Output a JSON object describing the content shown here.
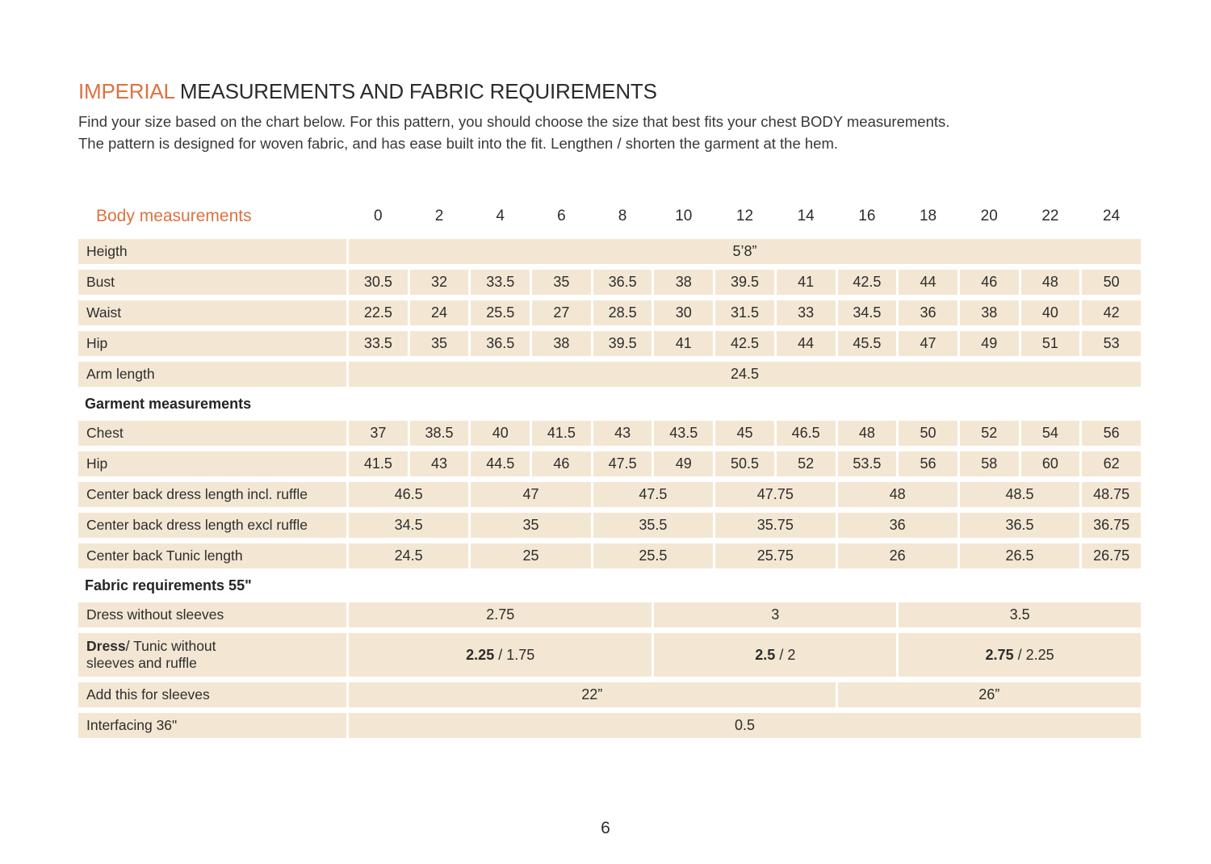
{
  "page": {
    "title_accent": "IMPERIAL",
    "title_rest": "MEASUREMENTS AND FABRIC REQUIREMENTS",
    "intro_line1": "Find your size based on the chart below. For this pattern, you should choose the size that best fits your chest BODY measurements.",
    "intro_line2": "The pattern is designed for woven fabric, and has ease built into the fit. Lengthen / shorten the garment at the hem.",
    "page_number": "6"
  },
  "colors": {
    "accent_orange": "#dd7240",
    "cell_beige": "#f3e7d3",
    "text_dark": "#2d2d2d"
  },
  "table": {
    "header_label": "Body measurements",
    "sizes": [
      "0",
      "2",
      "4",
      "6",
      "8",
      "10",
      "12",
      "14",
      "16",
      "18",
      "20",
      "22",
      "24"
    ],
    "rows": [
      {
        "type": "data",
        "label": "Heigth",
        "cells": [
          {
            "text": "5’8”",
            "span": 13
          }
        ]
      },
      {
        "type": "data",
        "label": "Bust",
        "cells": [
          {
            "text": "30.5"
          },
          {
            "text": "32"
          },
          {
            "text": "33.5"
          },
          {
            "text": "35"
          },
          {
            "text": "36.5"
          },
          {
            "text": "38"
          },
          {
            "text": "39.5"
          },
          {
            "text": "41"
          },
          {
            "text": "42.5"
          },
          {
            "text": "44"
          },
          {
            "text": "46"
          },
          {
            "text": "48"
          },
          {
            "text": "50"
          }
        ]
      },
      {
        "type": "data",
        "label": "Waist",
        "cells": [
          {
            "text": "22.5"
          },
          {
            "text": "24"
          },
          {
            "text": "25.5"
          },
          {
            "text": "27"
          },
          {
            "text": "28.5"
          },
          {
            "text": "30"
          },
          {
            "text": "31.5"
          },
          {
            "text": "33"
          },
          {
            "text": "34.5"
          },
          {
            "text": "36"
          },
          {
            "text": "38"
          },
          {
            "text": "40"
          },
          {
            "text": "42"
          }
        ]
      },
      {
        "type": "data",
        "label": "Hip",
        "cells": [
          {
            "text": "33.5"
          },
          {
            "text": "35"
          },
          {
            "text": "36.5"
          },
          {
            "text": "38"
          },
          {
            "text": "39.5"
          },
          {
            "text": "41"
          },
          {
            "text": "42.5"
          },
          {
            "text": "44"
          },
          {
            "text": "45.5"
          },
          {
            "text": "47"
          },
          {
            "text": "49"
          },
          {
            "text": "51"
          },
          {
            "text": "53"
          }
        ]
      },
      {
        "type": "data",
        "label": "Arm length",
        "cells": [
          {
            "text": "24.5",
            "span": 13
          }
        ]
      },
      {
        "type": "section",
        "label": "Garment measurements"
      },
      {
        "type": "data",
        "label": "Chest",
        "cells": [
          {
            "text": "37"
          },
          {
            "text": "38.5"
          },
          {
            "text": "40"
          },
          {
            "text": "41.5"
          },
          {
            "text": "43"
          },
          {
            "text": "43.5"
          },
          {
            "text": "45"
          },
          {
            "text": "46.5"
          },
          {
            "text": "48"
          },
          {
            "text": "50"
          },
          {
            "text": "52"
          },
          {
            "text": "54"
          },
          {
            "text": "56"
          }
        ]
      },
      {
        "type": "data",
        "label": "Hip",
        "cells": [
          {
            "text": "41.5"
          },
          {
            "text": "43"
          },
          {
            "text": "44.5"
          },
          {
            "text": "46"
          },
          {
            "text": "47.5"
          },
          {
            "text": "49"
          },
          {
            "text": "50.5"
          },
          {
            "text": "52"
          },
          {
            "text": "53.5"
          },
          {
            "text": "56"
          },
          {
            "text": "58"
          },
          {
            "text": "60"
          },
          {
            "text": "62"
          }
        ]
      },
      {
        "type": "data",
        "label": "Center back dress length incl. ruffle",
        "cells": [
          {
            "text": "46.5",
            "span": 2
          },
          {
            "text": "47",
            "span": 2
          },
          {
            "text": "47.5",
            "span": 2
          },
          {
            "text": "47.75",
            "span": 2
          },
          {
            "text": "48",
            "span": 2
          },
          {
            "text": "48.5",
            "span": 2
          },
          {
            "text": "48.75"
          }
        ]
      },
      {
        "type": "data",
        "label": "Center back dress length excl ruffle",
        "cells": [
          {
            "text": "34.5",
            "span": 2
          },
          {
            "text": "35",
            "span": 2
          },
          {
            "text": "35.5",
            "span": 2
          },
          {
            "text": "35.75",
            "span": 2
          },
          {
            "text": "36",
            "span": 2
          },
          {
            "text": "36.5",
            "span": 2
          },
          {
            "text": "36.75"
          }
        ]
      },
      {
        "type": "data",
        "label": "Center back Tunic length",
        "cells": [
          {
            "text": "24.5",
            "span": 2
          },
          {
            "text": "25",
            "span": 2
          },
          {
            "text": "25.5",
            "span": 2
          },
          {
            "text": "25.75",
            "span": 2
          },
          {
            "text": "26",
            "span": 2
          },
          {
            "text": "26.5",
            "span": 2
          },
          {
            "text": "26.75"
          }
        ]
      },
      {
        "type": "section",
        "label": "Fabric requirements 55\""
      },
      {
        "type": "data",
        "label": "Dress without sleeves",
        "cells": [
          {
            "text": "2.75",
            "span": 5
          },
          {
            "text": "3",
            "span": 4
          },
          {
            "text": "3.5",
            "span": 4
          }
        ]
      },
      {
        "type": "data",
        "tall": true,
        "label_bold": "Dress",
        "label": "/ Tunic without sleeves and ruffle",
        "cells": [
          {
            "bold": "2.25",
            "text": " / 1.75",
            "span": 5
          },
          {
            "bold": "2.5",
            "text": " / 2",
            "span": 4
          },
          {
            "bold": "2.75",
            "text": " / 2.25",
            "span": 4
          }
        ]
      },
      {
        "type": "data",
        "label": "Add this for sleeves",
        "cells": [
          {
            "text": "22”",
            "span": 8
          },
          {
            "text": "26”",
            "span": 5
          }
        ]
      },
      {
        "type": "data",
        "label": "Interfacing 36\"",
        "cells": [
          {
            "text": "0.5",
            "span": 13
          }
        ]
      }
    ]
  }
}
